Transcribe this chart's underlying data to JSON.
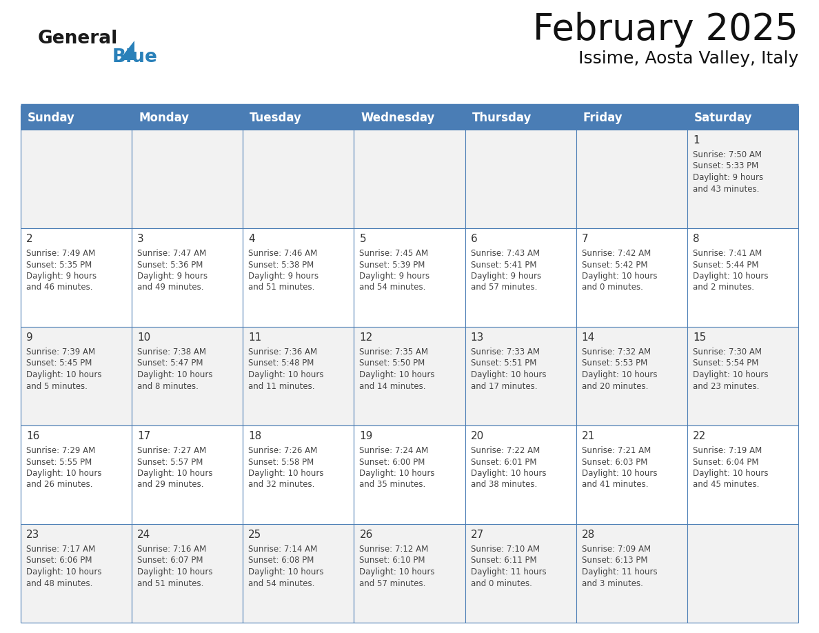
{
  "title": "February 2025",
  "subtitle": "Issime, Aosta Valley, Italy",
  "days_of_week": [
    "Sunday",
    "Monday",
    "Tuesday",
    "Wednesday",
    "Thursday",
    "Friday",
    "Saturday"
  ],
  "header_bg": "#4A7DB5",
  "header_text": "#FFFFFF",
  "cell_bg_odd": "#F2F2F2",
  "cell_bg_even": "#FFFFFF",
  "grid_line_color": "#4A7DB5",
  "title_color": "#111111",
  "subtitle_color": "#111111",
  "text_color": "#444444",
  "day_num_color": "#333333",
  "logo_black": "#1a1a1a",
  "logo_blue": "#2980B9",
  "calendar_data": [
    {
      "day": 1,
      "col": 6,
      "row": 0,
      "sunrise": "7:50 AM",
      "sunset": "5:33 PM",
      "daylight": "9 hours and 43 minutes."
    },
    {
      "day": 2,
      "col": 0,
      "row": 1,
      "sunrise": "7:49 AM",
      "sunset": "5:35 PM",
      "daylight": "9 hours and 46 minutes."
    },
    {
      "day": 3,
      "col": 1,
      "row": 1,
      "sunrise": "7:47 AM",
      "sunset": "5:36 PM",
      "daylight": "9 hours and 49 minutes."
    },
    {
      "day": 4,
      "col": 2,
      "row": 1,
      "sunrise": "7:46 AM",
      "sunset": "5:38 PM",
      "daylight": "9 hours and 51 minutes."
    },
    {
      "day": 5,
      "col": 3,
      "row": 1,
      "sunrise": "7:45 AM",
      "sunset": "5:39 PM",
      "daylight": "9 hours and 54 minutes."
    },
    {
      "day": 6,
      "col": 4,
      "row": 1,
      "sunrise": "7:43 AM",
      "sunset": "5:41 PM",
      "daylight": "9 hours and 57 minutes."
    },
    {
      "day": 7,
      "col": 5,
      "row": 1,
      "sunrise": "7:42 AM",
      "sunset": "5:42 PM",
      "daylight": "10 hours and 0 minutes."
    },
    {
      "day": 8,
      "col": 6,
      "row": 1,
      "sunrise": "7:41 AM",
      "sunset": "5:44 PM",
      "daylight": "10 hours and 2 minutes."
    },
    {
      "day": 9,
      "col": 0,
      "row": 2,
      "sunrise": "7:39 AM",
      "sunset": "5:45 PM",
      "daylight": "10 hours and 5 minutes."
    },
    {
      "day": 10,
      "col": 1,
      "row": 2,
      "sunrise": "7:38 AM",
      "sunset": "5:47 PM",
      "daylight": "10 hours and 8 minutes."
    },
    {
      "day": 11,
      "col": 2,
      "row": 2,
      "sunrise": "7:36 AM",
      "sunset": "5:48 PM",
      "daylight": "10 hours and 11 minutes."
    },
    {
      "day": 12,
      "col": 3,
      "row": 2,
      "sunrise": "7:35 AM",
      "sunset": "5:50 PM",
      "daylight": "10 hours and 14 minutes."
    },
    {
      "day": 13,
      "col": 4,
      "row": 2,
      "sunrise": "7:33 AM",
      "sunset": "5:51 PM",
      "daylight": "10 hours and 17 minutes."
    },
    {
      "day": 14,
      "col": 5,
      "row": 2,
      "sunrise": "7:32 AM",
      "sunset": "5:53 PM",
      "daylight": "10 hours and 20 minutes."
    },
    {
      "day": 15,
      "col": 6,
      "row": 2,
      "sunrise": "7:30 AM",
      "sunset": "5:54 PM",
      "daylight": "10 hours and 23 minutes."
    },
    {
      "day": 16,
      "col": 0,
      "row": 3,
      "sunrise": "7:29 AM",
      "sunset": "5:55 PM",
      "daylight": "10 hours and 26 minutes."
    },
    {
      "day": 17,
      "col": 1,
      "row": 3,
      "sunrise": "7:27 AM",
      "sunset": "5:57 PM",
      "daylight": "10 hours and 29 minutes."
    },
    {
      "day": 18,
      "col": 2,
      "row": 3,
      "sunrise": "7:26 AM",
      "sunset": "5:58 PM",
      "daylight": "10 hours and 32 minutes."
    },
    {
      "day": 19,
      "col": 3,
      "row": 3,
      "sunrise": "7:24 AM",
      "sunset": "6:00 PM",
      "daylight": "10 hours and 35 minutes."
    },
    {
      "day": 20,
      "col": 4,
      "row": 3,
      "sunrise": "7:22 AM",
      "sunset": "6:01 PM",
      "daylight": "10 hours and 38 minutes."
    },
    {
      "day": 21,
      "col": 5,
      "row": 3,
      "sunrise": "7:21 AM",
      "sunset": "6:03 PM",
      "daylight": "10 hours and 41 minutes."
    },
    {
      "day": 22,
      "col": 6,
      "row": 3,
      "sunrise": "7:19 AM",
      "sunset": "6:04 PM",
      "daylight": "10 hours and 45 minutes."
    },
    {
      "day": 23,
      "col": 0,
      "row": 4,
      "sunrise": "7:17 AM",
      "sunset": "6:06 PM",
      "daylight": "10 hours and 48 minutes."
    },
    {
      "day": 24,
      "col": 1,
      "row": 4,
      "sunrise": "7:16 AM",
      "sunset": "6:07 PM",
      "daylight": "10 hours and 51 minutes."
    },
    {
      "day": 25,
      "col": 2,
      "row": 4,
      "sunrise": "7:14 AM",
      "sunset": "6:08 PM",
      "daylight": "10 hours and 54 minutes."
    },
    {
      "day": 26,
      "col": 3,
      "row": 4,
      "sunrise": "7:12 AM",
      "sunset": "6:10 PM",
      "daylight": "10 hours and 57 minutes."
    },
    {
      "day": 27,
      "col": 4,
      "row": 4,
      "sunrise": "7:10 AM",
      "sunset": "6:11 PM",
      "daylight": "11 hours and 0 minutes."
    },
    {
      "day": 28,
      "col": 5,
      "row": 4,
      "sunrise": "7:09 AM",
      "sunset": "6:13 PM",
      "daylight": "11 hours and 3 minutes."
    }
  ]
}
